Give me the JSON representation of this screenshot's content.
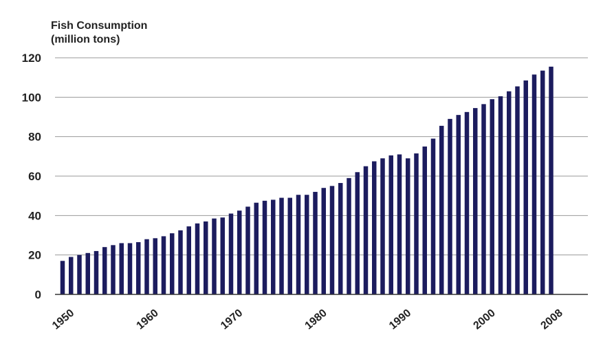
{
  "chart_data": {
    "type": "bar",
    "ylabel_line1": "Fish Consumption",
    "ylabel_line2": "(million tons)",
    "xlabel": "",
    "ylim": [
      0,
      120
    ],
    "yticks": [
      0,
      20,
      40,
      60,
      80,
      100,
      120
    ],
    "xtick_labels": [
      "1950",
      "1960",
      "1970",
      "1980",
      "1990",
      "2000",
      "2008"
    ],
    "grid": true,
    "bar_color": "#1c1c5e",
    "categories": [
      "1950",
      "1951",
      "1952",
      "1953",
      "1954",
      "1955",
      "1956",
      "1957",
      "1958",
      "1959",
      "1960",
      "1961",
      "1962",
      "1963",
      "1964",
      "1965",
      "1966",
      "1967",
      "1968",
      "1969",
      "1970",
      "1971",
      "1972",
      "1973",
      "1974",
      "1975",
      "1976",
      "1977",
      "1978",
      "1979",
      "1980",
      "1981",
      "1982",
      "1983",
      "1984",
      "1985",
      "1986",
      "1987",
      "1988",
      "1989",
      "1990",
      "1991",
      "1992",
      "1993",
      "1994",
      "1995",
      "1996",
      "1997",
      "1998",
      "1999",
      "2000",
      "2001",
      "2002",
      "2003",
      "2004",
      "2005",
      "2006",
      "2007",
      "2008"
    ],
    "values": [
      17,
      19,
      20,
      21,
      22,
      24,
      25,
      26,
      26,
      26.5,
      28,
      28.5,
      29.5,
      31,
      32.5,
      34.5,
      36,
      37,
      38.5,
      39,
      41,
      42.5,
      44.5,
      46.5,
      47.5,
      48,
      49,
      49,
      50.5,
      50.5,
      52,
      54,
      55,
      56.5,
      59,
      62,
      65,
      67.5,
      69,
      70.5,
      71,
      69,
      71.5,
      75,
      79,
      85.5,
      89,
      91,
      92.5,
      94.5,
      96.5,
      99,
      100.5,
      103,
      105.5,
      108.5,
      111.5,
      113.5,
      115.5
    ]
  }
}
